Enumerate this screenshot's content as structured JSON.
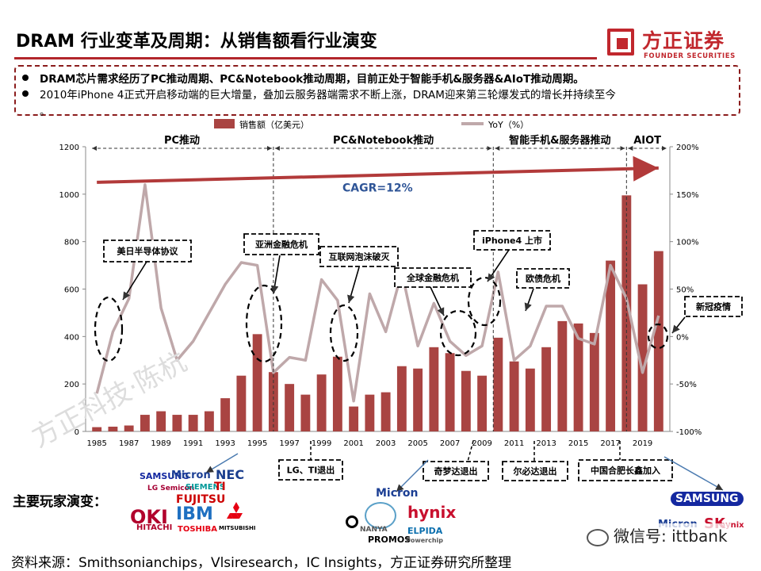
{
  "title": "DRAM 行业变革及周期：从销售额看行业演变",
  "logo": {
    "cn": "方正证券",
    "en": "FOUNDER SECURITIES"
  },
  "bullets": [
    "DRAM芯片需求经历了PC推动周期、PC&Notebook推动周期，目前正处于智能手机&服务器&AIoT推动周期。",
    "2010年iPhone  4正式开启移动端的巨大增量，叠加云服务器端需求不断上涨，DRAM迎来第三轮爆发式的增长并持续至今",
    "。"
  ],
  "chart_data": {
    "type": "bar+line",
    "series": [
      {
        "name": "销售额（亿美元）",
        "type": "bar",
        "axis": "left",
        "color": "#a94442",
        "x": [
          1985,
          1986,
          1987,
          1988,
          1989,
          1990,
          1991,
          1992,
          1993,
          1994,
          1995,
          1996,
          1997,
          1998,
          1999,
          2000,
          2001,
          2002,
          2003,
          2004,
          2005,
          2006,
          2007,
          2008,
          2009,
          2010,
          2011,
          2012,
          2013,
          2014,
          2015,
          2016,
          2017,
          2018,
          2019,
          2020
        ],
        "values": [
          18,
          20,
          25,
          70,
          85,
          70,
          70,
          85,
          140,
          235,
          410,
          250,
          200,
          155,
          240,
          315,
          105,
          155,
          165,
          275,
          265,
          355,
          330,
          255,
          235,
          395,
          295,
          265,
          355,
          465,
          455,
          415,
          720,
          995,
          620,
          760
        ]
      },
      {
        "name": "YoY（%）",
        "type": "line",
        "axis": "right",
        "color": "#bfa8aa",
        "x": [
          1985,
          1986,
          1987,
          1988,
          1989,
          1990,
          1991,
          1992,
          1993,
          1994,
          1995,
          1996,
          1997,
          1998,
          1999,
          2000,
          2001,
          2002,
          2003,
          2004,
          2005,
          2006,
          2007,
          2008,
          2009,
          2010,
          2011,
          2012,
          2013,
          2014,
          2015,
          2016,
          2017,
          2018,
          2019,
          2020
        ],
        "values": [
          -60,
          5,
          40,
          160,
          30,
          -25,
          -5,
          25,
          55,
          78,
          75,
          -38,
          -22,
          -25,
          60,
          38,
          -68,
          45,
          5,
          68,
          -10,
          35,
          -5,
          -20,
          -10,
          68,
          -25,
          -10,
          32,
          32,
          -2,
          -8,
          75,
          40,
          -38,
          22
        ]
      }
    ],
    "x_ticks": [
      "1985",
      "1987",
      "1989",
      "1991",
      "1993",
      "1995",
      "1997",
      "1999",
      "2001",
      "2003",
      "2005",
      "2007",
      "2009",
      "2011",
      "2013",
      "2015",
      "2017",
      "2019"
    ],
    "y_left": {
      "min": 0,
      "max": 1200,
      "ticks": [
        "0",
        "200",
        "400",
        "600",
        "800",
        "1000",
        "1200"
      ]
    },
    "y_right": {
      "min": -100,
      "max": 200,
      "ticks": [
        "-100%",
        "-50%",
        "0%",
        "50%",
        "100%",
        "150%",
        "200%"
      ]
    },
    "periods": [
      {
        "label": "PC推动",
        "from": 1984.6,
        "to": 1996.0
      },
      {
        "label": "PC&Notebook推动",
        "from": 1996.0,
        "to": 2009.7
      },
      {
        "label": "智能手机&服务器推动",
        "from": 2009.7,
        "to": 2018.0
      },
      {
        "label": "AIOT",
        "from": 2018.0,
        "to": 2020.6
      }
    ],
    "cagr": {
      "label": "CAGR=12%",
      "from": [
        1985,
        1050
      ],
      "to": [
        2020,
        1110
      ]
    },
    "events": [
      {
        "label": "美日半导体协议"
      },
      {
        "label": "亚洲金融危机"
      },
      {
        "label": "互联网泡沫破灭"
      },
      {
        "label": "全球金融危机"
      },
      {
        "label": "iPhone4 上市"
      },
      {
        "label": "欧债危机"
      },
      {
        "label": "新冠疫情"
      }
    ],
    "exits": [
      {
        "label": "LG、TI退出"
      },
      {
        "label": "奇梦达退出"
      },
      {
        "label": "尔必达退出"
      },
      {
        "label": "中国合肥长鑫加入"
      }
    ]
  },
  "players": {
    "label": "主要玩家演变：",
    "era1": [
      "SAMSUNG",
      "Micron",
      "NEC",
      "LG Semicon",
      "SIEMENS",
      "TI",
      "FUJITSU",
      "OKI",
      "IBM",
      "MITSUBISHI",
      "HITACHI",
      "TOSHIBA"
    ],
    "era2": [
      "Micron",
      "hynix",
      "NANYA",
      "ELPIDA",
      "PROMOS",
      "Powerchip"
    ],
    "era3": [
      "SAMSUNG",
      "Micron",
      "SK",
      "hynix"
    ]
  },
  "source": "资料来源：Smithsonianchips，Vlsiresearch，IC Insights，方正证券研究所整理",
  "watermark": "方正科技·陈杭",
  "wechat": "微信号: ittbank"
}
